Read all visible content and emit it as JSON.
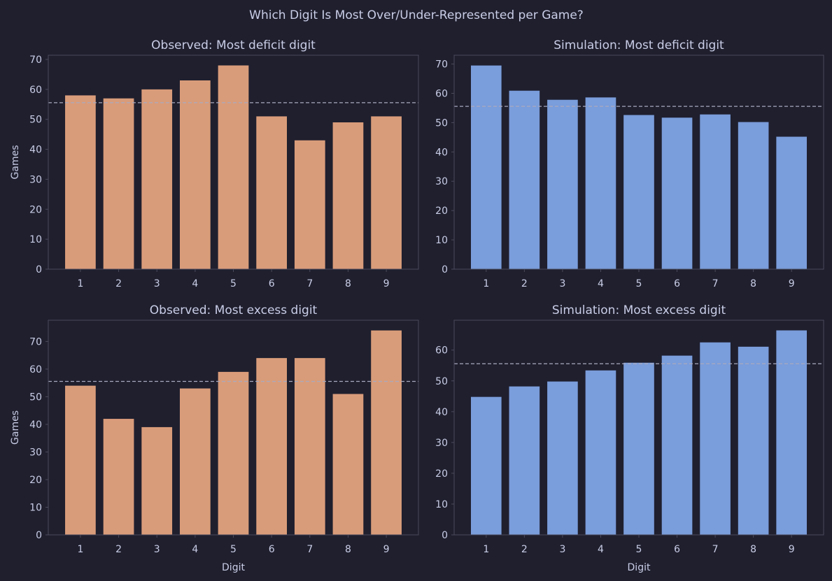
{
  "suptitle": "Which Digit Is Most Over/Under-Represented per Game?",
  "colors": {
    "background": "#1f1f2e",
    "observed": "#d99c7a",
    "simulation": "#7a9ddb",
    "text": "#c9cde6",
    "spine": "#4a4a5c",
    "reference": "#a9a9bf"
  },
  "chart_data": [
    {
      "type": "bar",
      "title": "Observed: Most deficit digit",
      "xlabel": "",
      "ylabel": "Games",
      "categories": [
        "1",
        "2",
        "3",
        "4",
        "5",
        "6",
        "7",
        "8",
        "9"
      ],
      "values": [
        58,
        57,
        60,
        63,
        68,
        51,
        43,
        49,
        51
      ],
      "ylim": [
        0,
        71.4
      ],
      "yticks": [
        0,
        10,
        20,
        30,
        40,
        50,
        60,
        70
      ],
      "reference_line": 55.56,
      "series_color": "observed"
    },
    {
      "type": "bar",
      "title": "Simulation: Most deficit digit",
      "xlabel": "",
      "ylabel": "",
      "categories": [
        "1",
        "2",
        "3",
        "4",
        "5",
        "6",
        "7",
        "8",
        "9"
      ],
      "values": [
        69.5,
        60.9,
        57.8,
        58.6,
        52.6,
        51.7,
        52.8,
        50.2,
        45.2
      ],
      "ylim": [
        0,
        73.0
      ],
      "yticks": [
        0,
        10,
        20,
        30,
        40,
        50,
        60,
        70
      ],
      "reference_line": 55.56,
      "series_color": "simulation"
    },
    {
      "type": "bar",
      "title": "Observed: Most excess digit",
      "xlabel": "Digit",
      "ylabel": "Games",
      "categories": [
        "1",
        "2",
        "3",
        "4",
        "5",
        "6",
        "7",
        "8",
        "9"
      ],
      "values": [
        54,
        42,
        39,
        53,
        59,
        64,
        64,
        51,
        74
      ],
      "ylim": [
        0,
        77.7
      ],
      "yticks": [
        0,
        10,
        20,
        30,
        40,
        50,
        60,
        70
      ],
      "reference_line": 55.56,
      "series_color": "observed"
    },
    {
      "type": "bar",
      "title": "Simulation: Most excess digit",
      "xlabel": "Digit",
      "ylabel": "",
      "categories": [
        "1",
        "2",
        "3",
        "4",
        "5",
        "6",
        "7",
        "8",
        "9"
      ],
      "values": [
        44.8,
        48.2,
        49.8,
        53.4,
        55.9,
        58.2,
        62.5,
        61.1,
        66.4
      ],
      "ylim": [
        0,
        69.7
      ],
      "yticks": [
        0,
        10,
        20,
        30,
        40,
        50,
        60
      ],
      "reference_line": 55.56,
      "series_color": "simulation"
    }
  ]
}
